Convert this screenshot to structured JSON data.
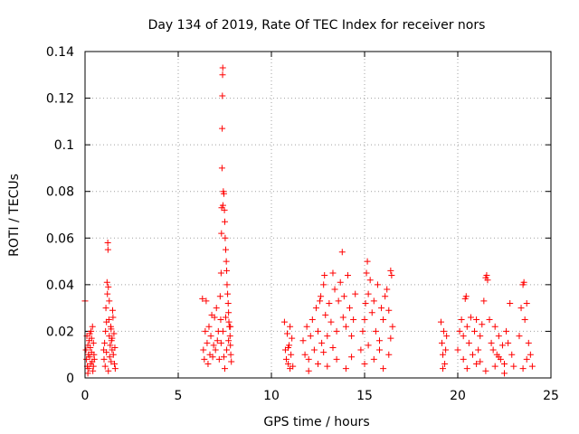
{
  "chart_data": {
    "type": "scatter",
    "title": "Day 134 of 2019, Rate Of TEC Index for receiver nors",
    "xlabel": "GPS time / hours",
    "ylabel": "ROTI / TECUs",
    "xlim": [
      0,
      25
    ],
    "ylim": [
      0,
      0.14
    ],
    "xticks": [
      0,
      5,
      10,
      15,
      20,
      25
    ],
    "yticks": [
      0,
      0.02,
      0.04,
      0.06,
      0.08,
      0.1,
      0.12,
      0.14
    ],
    "xtick_labels": [
      "0",
      "5",
      "10",
      "15",
      "20",
      "25"
    ],
    "ytick_labels": [
      "0",
      "0.02",
      "0.04",
      "0.06",
      "0.08",
      "0.1",
      "0.12",
      "0.14"
    ],
    "grid": true,
    "marker": "+",
    "color": "#ff0000",
    "series": [
      {
        "name": "ROTI",
        "points": [
          [
            0.0,
            0.033
          ],
          [
            0.05,
            0.012
          ],
          [
            0.08,
            0.008
          ],
          [
            0.1,
            0.018
          ],
          [
            0.12,
            0.005
          ],
          [
            0.15,
            0.014
          ],
          [
            0.18,
            0.01
          ],
          [
            0.2,
            0.004
          ],
          [
            0.22,
            0.016
          ],
          [
            0.25,
            0.009
          ],
          [
            0.28,
            0.013
          ],
          [
            0.3,
            0.006
          ],
          [
            0.32,
            0.02
          ],
          [
            0.35,
            0.011
          ],
          [
            0.38,
            0.007
          ],
          [
            0.4,
            0.022
          ],
          [
            0.42,
            0.003
          ],
          [
            0.45,
            0.015
          ],
          [
            0.48,
            0.01
          ],
          [
            0.5,
            0.008
          ],
          [
            0.25,
            0.019
          ],
          [
            0.15,
            0.002
          ],
          [
            0.35,
            0.017
          ],
          [
            0.45,
            0.005
          ],
          [
            1.0,
            0.012
          ],
          [
            1.02,
            0.008
          ],
          [
            1.05,
            0.015
          ],
          [
            1.08,
            0.005
          ],
          [
            1.1,
            0.02
          ],
          [
            1.12,
            0.03
          ],
          [
            1.15,
            0.011
          ],
          [
            1.18,
            0.041
          ],
          [
            1.2,
            0.036
          ],
          [
            1.22,
            0.058
          ],
          [
            1.23,
            0.055
          ],
          [
            1.25,
            0.039
          ],
          [
            1.28,
            0.025
          ],
          [
            1.3,
            0.018
          ],
          [
            1.32,
            0.009
          ],
          [
            1.35,
            0.014
          ],
          [
            1.38,
            0.022
          ],
          [
            1.4,
            0.007
          ],
          [
            1.42,
            0.016
          ],
          [
            1.45,
            0.012
          ],
          [
            1.48,
            0.029
          ],
          [
            1.5,
            0.026
          ],
          [
            1.52,
            0.01
          ],
          [
            1.55,
            0.019
          ],
          [
            1.58,
            0.006
          ],
          [
            1.6,
            0.013
          ],
          [
            1.62,
            0.004
          ],
          [
            1.3,
            0.033
          ],
          [
            1.4,
            0.021
          ],
          [
            1.25,
            0.003
          ],
          [
            1.15,
            0.024
          ],
          [
            1.45,
            0.017
          ],
          [
            6.3,
            0.034
          ],
          [
            6.35,
            0.012
          ],
          [
            6.4,
            0.008
          ],
          [
            6.45,
            0.02
          ],
          [
            6.5,
            0.033
          ],
          [
            6.55,
            0.015
          ],
          [
            6.6,
            0.006
          ],
          [
            6.65,
            0.022
          ],
          [
            6.7,
            0.01
          ],
          [
            6.75,
            0.018
          ],
          [
            6.8,
            0.027
          ],
          [
            6.85,
            0.009
          ],
          [
            6.9,
            0.014
          ],
          [
            6.95,
            0.026
          ],
          [
            7.0,
            0.012
          ],
          [
            7.05,
            0.03
          ],
          [
            7.1,
            0.016
          ],
          [
            7.15,
            0.02
          ],
          [
            7.2,
            0.008
          ],
          [
            7.25,
            0.035
          ],
          [
            7.28,
            0.025
          ],
          [
            7.3,
            0.045
          ],
          [
            7.32,
            0.062
          ],
          [
            7.33,
            0.073
          ],
          [
            7.35,
            0.09
          ],
          [
            7.36,
            0.107
          ],
          [
            7.37,
            0.121
          ],
          [
            7.38,
            0.13
          ],
          [
            7.39,
            0.133
          ],
          [
            7.4,
            0.074
          ],
          [
            7.42,
            0.08
          ],
          [
            7.45,
            0.079
          ],
          [
            7.48,
            0.072
          ],
          [
            7.5,
            0.067
          ],
          [
            7.52,
            0.06
          ],
          [
            7.55,
            0.055
          ],
          [
            7.58,
            0.05
          ],
          [
            7.6,
            0.046
          ],
          [
            7.62,
            0.04
          ],
          [
            7.65,
            0.036
          ],
          [
            7.68,
            0.032
          ],
          [
            7.7,
            0.028
          ],
          [
            7.72,
            0.024
          ],
          [
            7.75,
            0.022
          ],
          [
            7.78,
            0.018
          ],
          [
            7.8,
            0.014
          ],
          [
            7.82,
            0.01
          ],
          [
            7.85,
            0.007
          ],
          [
            7.5,
            0.004
          ],
          [
            7.6,
            0.012
          ],
          [
            7.7,
            0.016
          ],
          [
            7.4,
            0.02
          ],
          [
            7.55,
            0.026
          ],
          [
            7.3,
            0.015
          ],
          [
            7.45,
            0.009
          ],
          [
            7.8,
            0.022
          ],
          [
            10.7,
            0.024
          ],
          [
            10.75,
            0.012
          ],
          [
            10.8,
            0.008
          ],
          [
            10.85,
            0.019
          ],
          [
            10.9,
            0.006
          ],
          [
            10.95,
            0.014
          ],
          [
            11.0,
            0.022
          ],
          [
            11.05,
            0.01
          ],
          [
            11.1,
            0.017
          ],
          [
            11.15,
            0.005
          ],
          [
            10.9,
            0.013
          ],
          [
            11.0,
            0.004
          ],
          [
            11.7,
            0.016
          ],
          [
            11.8,
            0.01
          ],
          [
            11.9,
            0.022
          ],
          [
            12.0,
            0.008
          ],
          [
            12.1,
            0.018
          ],
          [
            12.2,
            0.025
          ],
          [
            12.3,
            0.012
          ],
          [
            12.4,
            0.03
          ],
          [
            12.5,
            0.02
          ],
          [
            12.6,
            0.033
          ],
          [
            12.65,
            0.035
          ],
          [
            12.7,
            0.015
          ],
          [
            12.8,
            0.04
          ],
          [
            12.85,
            0.044
          ],
          [
            12.9,
            0.027
          ],
          [
            13.0,
            0.018
          ],
          [
            13.1,
            0.032
          ],
          [
            13.2,
            0.024
          ],
          [
            13.3,
            0.045
          ],
          [
            13.4,
            0.038
          ],
          [
            13.5,
            0.02
          ],
          [
            13.6,
            0.033
          ],
          [
            13.7,
            0.041
          ],
          [
            13.8,
            0.054
          ],
          [
            13.85,
            0.026
          ],
          [
            13.9,
            0.035
          ],
          [
            14.0,
            0.022
          ],
          [
            14.1,
            0.044
          ],
          [
            14.2,
            0.03
          ],
          [
            14.3,
            0.018
          ],
          [
            14.4,
            0.025
          ],
          [
            14.5,
            0.036
          ],
          [
            12.0,
            0.003
          ],
          [
            12.5,
            0.006
          ],
          [
            13.0,
            0.005
          ],
          [
            13.5,
            0.008
          ],
          [
            14.0,
            0.004
          ],
          [
            14.3,
            0.009
          ],
          [
            12.8,
            0.011
          ],
          [
            13.3,
            0.013
          ],
          [
            14.8,
            0.012
          ],
          [
            14.9,
            0.02
          ],
          [
            15.0,
            0.025
          ],
          [
            15.05,
            0.032
          ],
          [
            15.1,
            0.045
          ],
          [
            15.15,
            0.05
          ],
          [
            15.2,
            0.036
          ],
          [
            15.3,
            0.042
          ],
          [
            15.4,
            0.028
          ],
          [
            15.5,
            0.033
          ],
          [
            15.6,
            0.02
          ],
          [
            15.7,
            0.04
          ],
          [
            15.8,
            0.016
          ],
          [
            15.9,
            0.03
          ],
          [
            16.0,
            0.025
          ],
          [
            16.1,
            0.035
          ],
          [
            16.2,
            0.038
          ],
          [
            16.3,
            0.029
          ],
          [
            16.4,
            0.046
          ],
          [
            16.45,
            0.044
          ],
          [
            16.5,
            0.022
          ],
          [
            15.0,
            0.006
          ],
          [
            15.5,
            0.008
          ],
          [
            16.0,
            0.004
          ],
          [
            16.3,
            0.01
          ],
          [
            15.2,
            0.014
          ],
          [
            15.8,
            0.012
          ],
          [
            16.4,
            0.017
          ],
          [
            19.1,
            0.024
          ],
          [
            19.15,
            0.015
          ],
          [
            19.2,
            0.01
          ],
          [
            19.25,
            0.02
          ],
          [
            19.3,
            0.006
          ],
          [
            19.35,
            0.012
          ],
          [
            19.4,
            0.018
          ],
          [
            19.2,
            0.004
          ],
          [
            20.0,
            0.012
          ],
          [
            20.1,
            0.02
          ],
          [
            20.2,
            0.025
          ],
          [
            20.3,
            0.018
          ],
          [
            20.4,
            0.034
          ],
          [
            20.45,
            0.035
          ],
          [
            20.5,
            0.022
          ],
          [
            20.6,
            0.015
          ],
          [
            20.7,
            0.026
          ],
          [
            20.8,
            0.01
          ],
          [
            20.9,
            0.02
          ],
          [
            21.0,
            0.025
          ],
          [
            21.1,
            0.012
          ],
          [
            21.2,
            0.018
          ],
          [
            21.3,
            0.023
          ],
          [
            21.4,
            0.033
          ],
          [
            21.5,
            0.043
          ],
          [
            21.55,
            0.044
          ],
          [
            21.6,
            0.042
          ],
          [
            21.7,
            0.025
          ],
          [
            21.8,
            0.015
          ],
          [
            21.9,
            0.012
          ],
          [
            22.0,
            0.022
          ],
          [
            22.1,
            0.01
          ],
          [
            22.2,
            0.018
          ],
          [
            22.3,
            0.008
          ],
          [
            22.4,
            0.014
          ],
          [
            22.5,
            0.006
          ],
          [
            22.6,
            0.02
          ],
          [
            22.7,
            0.015
          ],
          [
            22.8,
            0.032
          ],
          [
            22.9,
            0.01
          ],
          [
            23.0,
            0.005
          ],
          [
            23.3,
            0.018
          ],
          [
            23.4,
            0.03
          ],
          [
            23.5,
            0.04
          ],
          [
            23.55,
            0.041
          ],
          [
            23.6,
            0.025
          ],
          [
            23.7,
            0.032
          ],
          [
            23.8,
            0.015
          ],
          [
            23.9,
            0.01
          ],
          [
            24.0,
            0.005
          ],
          [
            20.5,
            0.004
          ],
          [
            21.0,
            0.006
          ],
          [
            21.5,
            0.003
          ],
          [
            22.0,
            0.005
          ],
          [
            22.5,
            0.002
          ],
          [
            23.5,
            0.004
          ],
          [
            20.3,
            0.008
          ],
          [
            21.2,
            0.007
          ],
          [
            22.2,
            0.009
          ],
          [
            23.7,
            0.008
          ]
        ]
      }
    ]
  }
}
